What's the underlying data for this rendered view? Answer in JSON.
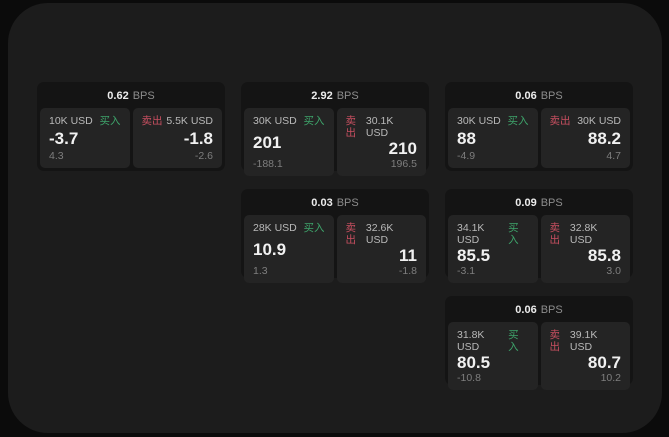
{
  "labels": {
    "bps": "BPS",
    "buy": "买入",
    "sell": "卖出"
  },
  "colors": {
    "outer_background": "#0b0b0b",
    "panel_background": "#1c1c1c",
    "card_background": "#141414",
    "tile_background": "#242424",
    "buy_green": "#3ea46b",
    "sell_red": "#c84f60"
  },
  "cards": [
    {
      "bps": "0.62",
      "buy": {
        "amount": "10K USD",
        "price": "-3.7",
        "delta": "4.3"
      },
      "sell": {
        "amount": "5.5K USD",
        "price": "-1.8",
        "delta": "-2.6"
      }
    },
    {
      "bps": "2.92",
      "buy": {
        "amount": "30K USD",
        "price": "201",
        "delta": "-188.1"
      },
      "sell": {
        "amount": "30.1K USD",
        "price": "210",
        "delta": "196.5"
      }
    },
    {
      "bps": "0.06",
      "buy": {
        "amount": "30K USD",
        "price": "88",
        "delta": "-4.9"
      },
      "sell": {
        "amount": "30K USD",
        "price": "88.2",
        "delta": "4.7"
      }
    },
    {
      "bps": "0.03",
      "buy": {
        "amount": "28K USD",
        "price": "10.9",
        "delta": "1.3"
      },
      "sell": {
        "amount": "32.6K USD",
        "price": "11",
        "delta": "-1.8"
      }
    },
    {
      "bps": "0.09",
      "buy": {
        "amount": "34.1K USD",
        "price": "85.5",
        "delta": "-3.1"
      },
      "sell": {
        "amount": "32.8K USD",
        "price": "85.8",
        "delta": "3.0"
      }
    },
    {
      "bps": "0.06",
      "buy": {
        "amount": "31.8K USD",
        "price": "80.5",
        "delta": "-10.8"
      },
      "sell": {
        "amount": "39.1K USD",
        "price": "80.7",
        "delta": "10.2"
      }
    }
  ]
}
